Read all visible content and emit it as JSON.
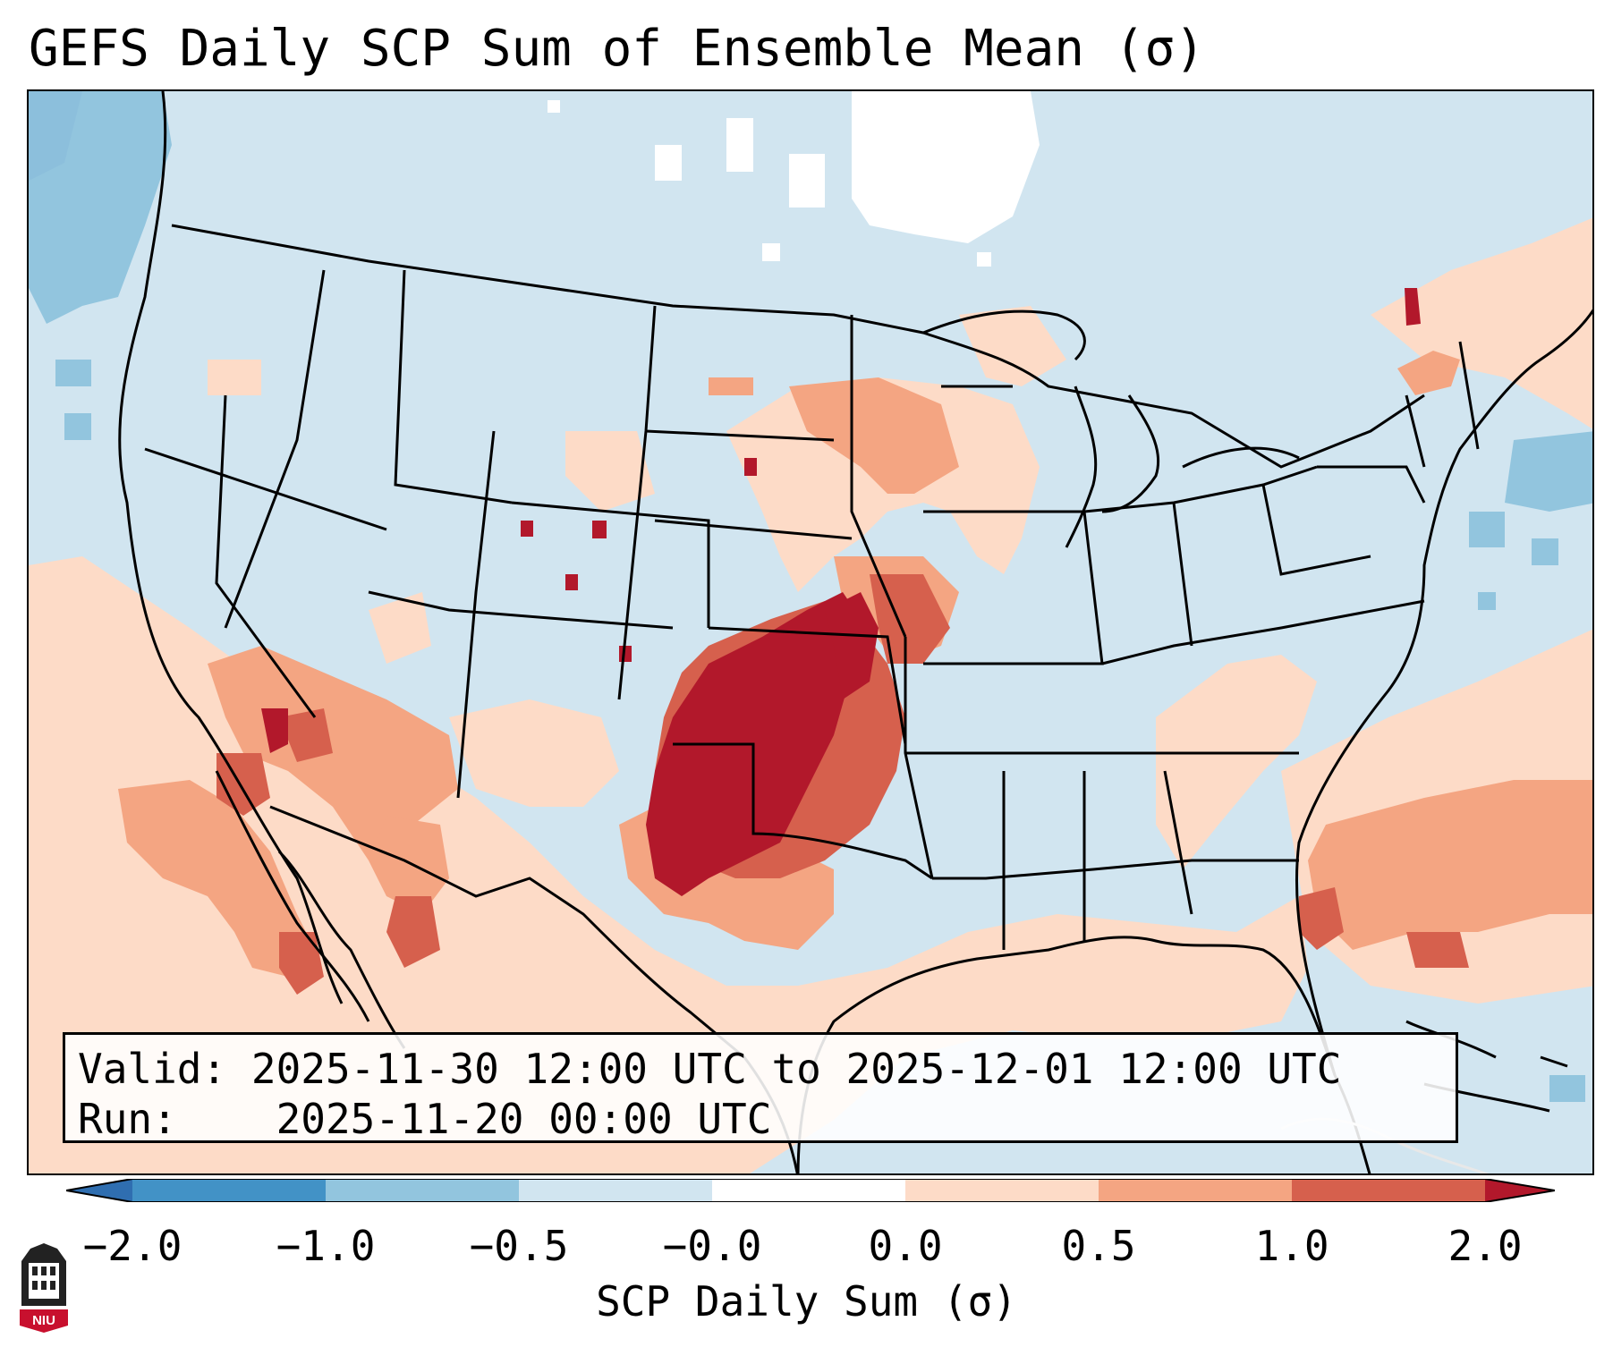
{
  "title": "GEFS Daily SCP Sum of Ensemble Mean (σ)",
  "info": {
    "valid_label": "Valid:",
    "valid_value": "2025-11-30 12:00 UTC to 2025-12-01 12:00 UTC",
    "run_label": "Run:",
    "run_value": "2025-11-20 00:00 UTC"
  },
  "colorbar": {
    "label": "SCP Daily Sum (σ)",
    "ticks": [
      "−2.0",
      "−1.0",
      "−0.5",
      "−0.0",
      "0.0",
      "0.5",
      "1.0",
      "2.0"
    ],
    "bins": [
      {
        "range": "< -2.0",
        "color": "#2f6eb0"
      },
      {
        "range": "-2.0 to -1.0",
        "color": "#4292c6"
      },
      {
        "range": "-1.0 to -0.5",
        "color": "#92c5de"
      },
      {
        "range": "-0.5 to -0.0",
        "color": "#d1e5f0"
      },
      {
        "range": "-0.0 to 0.0",
        "color": "#ffffff"
      },
      {
        "range": "0.0 to 0.5",
        "color": "#fddbc7"
      },
      {
        "range": "0.5 to 1.0",
        "color": "#f4a582"
      },
      {
        "range": "1.0 to 2.0",
        "color": "#d6604d"
      },
      {
        "range": "> 2.0",
        "color": "#b2182b"
      }
    ]
  },
  "logo": {
    "text": "NIU",
    "color": "#c8102e"
  }
}
